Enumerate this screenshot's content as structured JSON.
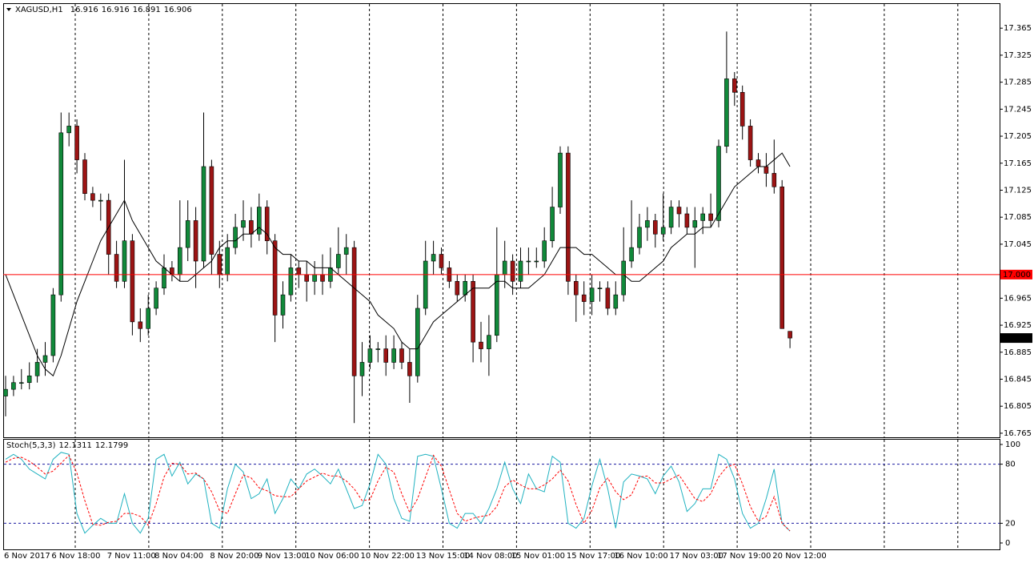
{
  "chart_data": [
    {
      "type": "candlestick",
      "title": "XAGUSD,H1",
      "categories": [
        "6 Nov 2017",
        null,
        null,
        null,
        null,
        null,
        "6 Nov 18:00",
        null,
        null,
        null,
        null,
        null,
        null,
        "7 Nov 11:00",
        null,
        null,
        null,
        null,
        null,
        "8 Nov 04:00",
        null,
        null,
        null,
        null,
        null,
        null,
        "8 Nov 20:00",
        null,
        null,
        null,
        null,
        null,
        "9 Nov 13:00",
        null,
        null,
        null,
        null,
        null,
        "10 Nov 06:00",
        null,
        null,
        null,
        null,
        null,
        null,
        "10 Nov 22:00",
        null,
        null,
        null,
        null,
        null,
        null,
        "13 Nov 15:00",
        null,
        null,
        null,
        null,
        null,
        "14 Nov 08:00",
        null,
        null,
        null,
        null,
        null,
        "15 Nov 01:00",
        null,
        null,
        null,
        null,
        null,
        null,
        "15 Nov 17:00",
        null,
        null,
        null,
        null,
        null,
        "16 Nov 10:00",
        null,
        null,
        null,
        null,
        null,
        null,
        "17 Nov 03:00",
        null,
        null,
        null,
        null,
        null,
        "17 Nov 19:00",
        null,
        null,
        null,
        null,
        null,
        null,
        "20 Nov 12:00",
        null,
        null
      ],
      "candles": [
        [
          16.82,
          16.85,
          16.79,
          16.83
        ],
        [
          16.83,
          16.85,
          16.82,
          16.84
        ],
        [
          16.84,
          16.86,
          16.83,
          16.84
        ],
        [
          16.84,
          16.87,
          16.83,
          16.85
        ],
        [
          16.85,
          16.89,
          16.84,
          16.87
        ],
        [
          16.87,
          16.9,
          16.85,
          16.88
        ],
        [
          16.88,
          16.98,
          16.87,
          16.97
        ],
        [
          16.97,
          17.24,
          16.96,
          17.21
        ],
        [
          17.21,
          17.24,
          17.19,
          17.22
        ],
        [
          17.22,
          17.23,
          17.15,
          17.17
        ],
        [
          17.17,
          17.18,
          17.11,
          17.12
        ],
        [
          17.12,
          17.13,
          17.1,
          17.11
        ],
        [
          17.11,
          17.12,
          17.08,
          17.11
        ],
        [
          17.11,
          17.12,
          17.0,
          17.03
        ],
        [
          17.03,
          17.05,
          16.98,
          16.99
        ],
        [
          16.99,
          17.17,
          16.98,
          17.05
        ],
        [
          17.05,
          17.06,
          16.91,
          16.93
        ],
        [
          16.93,
          16.95,
          16.9,
          16.92
        ],
        [
          16.92,
          16.97,
          16.91,
          16.95
        ],
        [
          16.95,
          16.99,
          16.94,
          16.98
        ],
        [
          16.98,
          17.03,
          16.97,
          17.01
        ],
        [
          17.01,
          17.02,
          16.99,
          17.0
        ],
        [
          17.0,
          17.11,
          16.99,
          17.04
        ],
        [
          17.04,
          17.11,
          17.02,
          17.08
        ],
        [
          17.08,
          17.1,
          16.98,
          17.02
        ],
        [
          17.02,
          17.24,
          17.01,
          17.16
        ],
        [
          17.16,
          17.17,
          17.0,
          17.03
        ],
        [
          17.03,
          17.05,
          16.98,
          17.0
        ],
        [
          17.0,
          17.06,
          16.99,
          17.04
        ],
        [
          17.04,
          17.09,
          17.03,
          17.07
        ],
        [
          17.07,
          17.11,
          17.05,
          17.08
        ],
        [
          17.08,
          17.1,
          17.04,
          17.06
        ],
        [
          17.06,
          17.12,
          17.05,
          17.1
        ],
        [
          17.1,
          17.11,
          17.03,
          17.05
        ],
        [
          17.05,
          17.06,
          16.9,
          16.94
        ],
        [
          16.94,
          16.99,
          16.92,
          16.97
        ],
        [
          16.97,
          17.03,
          16.96,
          17.01
        ],
        [
          17.01,
          17.02,
          16.98,
          17.0
        ],
        [
          17.0,
          17.02,
          16.96,
          16.99
        ],
        [
          16.99,
          17.02,
          16.97,
          17.0
        ],
        [
          17.0,
          17.03,
          16.97,
          16.99
        ],
        [
          16.99,
          17.04,
          16.98,
          17.01
        ],
        [
          17.01,
          17.07,
          17.0,
          17.03
        ],
        [
          17.03,
          17.06,
          17.0,
          17.04
        ],
        [
          17.04,
          17.05,
          16.78,
          16.85
        ],
        [
          16.85,
          16.9,
          16.82,
          16.87
        ],
        [
          16.87,
          16.91,
          16.86,
          16.89
        ],
        [
          16.89,
          16.9,
          16.87,
          16.89
        ],
        [
          16.89,
          16.91,
          16.85,
          16.87
        ],
        [
          16.87,
          16.91,
          16.86,
          16.89
        ],
        [
          16.89,
          16.9,
          16.86,
          16.87
        ],
        [
          16.87,
          16.89,
          16.81,
          16.85
        ],
        [
          16.85,
          16.97,
          16.84,
          16.95
        ],
        [
          16.95,
          17.05,
          16.94,
          17.02
        ],
        [
          17.02,
          17.05,
          17.0,
          17.03
        ],
        [
          17.03,
          17.04,
          17.0,
          17.01
        ],
        [
          17.01,
          17.02,
          16.98,
          16.99
        ],
        [
          16.99,
          17.0,
          16.96,
          16.97
        ],
        [
          16.97,
          17.0,
          16.96,
          16.99
        ],
        [
          16.99,
          17.0,
          16.87,
          16.9
        ],
        [
          16.9,
          16.93,
          16.87,
          16.89
        ],
        [
          16.89,
          16.94,
          16.85,
          16.91
        ],
        [
          16.91,
          17.07,
          16.9,
          17.0
        ],
        [
          17.0,
          17.05,
          16.98,
          17.02
        ],
        [
          17.02,
          17.03,
          16.97,
          16.99
        ],
        [
          16.99,
          17.04,
          16.98,
          17.02
        ],
        [
          17.02,
          17.04,
          17.0,
          17.02
        ],
        [
          17.02,
          17.04,
          17.01,
          17.02
        ],
        [
          17.02,
          17.07,
          17.01,
          17.05
        ],
        [
          17.05,
          17.13,
          17.04,
          17.1
        ],
        [
          17.1,
          17.19,
          17.09,
          17.18
        ],
        [
          17.18,
          17.19,
          16.97,
          16.99
        ],
        [
          16.99,
          17.0,
          16.93,
          16.97
        ],
        [
          16.97,
          16.99,
          16.94,
          16.96
        ],
        [
          16.96,
          17.0,
          16.94,
          16.98
        ],
        [
          16.98,
          16.99,
          16.96,
          16.98
        ],
        [
          16.98,
          16.99,
          16.94,
          16.95
        ],
        [
          16.95,
          16.99,
          16.94,
          16.97
        ],
        [
          16.97,
          17.07,
          16.96,
          17.02
        ],
        [
          17.02,
          17.11,
          17.01,
          17.04
        ],
        [
          17.04,
          17.09,
          17.03,
          17.07
        ],
        [
          17.07,
          17.1,
          17.05,
          17.08
        ],
        [
          17.08,
          17.09,
          17.04,
          17.06
        ],
        [
          17.06,
          17.12,
          17.05,
          17.07
        ],
        [
          17.07,
          17.11,
          17.06,
          17.1
        ],
        [
          17.1,
          17.11,
          17.07,
          17.09
        ],
        [
          17.09,
          17.1,
          17.06,
          17.07
        ],
        [
          17.07,
          17.1,
          17.01,
          17.08
        ],
        [
          17.08,
          17.1,
          17.06,
          17.09
        ],
        [
          17.09,
          17.12,
          17.07,
          17.08
        ],
        [
          17.08,
          17.2,
          17.07,
          17.19
        ],
        [
          17.19,
          17.36,
          17.18,
          17.29
        ],
        [
          17.29,
          17.3,
          17.25,
          17.27
        ],
        [
          17.27,
          17.28,
          17.2,
          17.22
        ],
        [
          17.22,
          17.23,
          17.16,
          17.17
        ],
        [
          17.17,
          17.18,
          17.15,
          17.16
        ],
        [
          17.16,
          17.18,
          17.13,
          17.15
        ],
        [
          17.15,
          17.2,
          17.12,
          17.13
        ],
        [
          17.13,
          17.14,
          16.92,
          16.92
        ],
        [
          16.916,
          16.916,
          16.891,
          16.906
        ]
      ],
      "up_color": "#11893a",
      "down_color": "#9c1414",
      "ma": {
        "color": "#000000",
        "values": [
          17.0,
          16.97,
          16.94,
          16.91,
          16.88,
          16.86,
          16.85,
          16.88,
          16.92,
          16.96,
          16.99,
          17.02,
          17.05,
          17.07,
          17.09,
          17.11,
          17.08,
          17.06,
          17.04,
          17.02,
          17.01,
          17.0,
          16.99,
          16.99,
          17.0,
          17.01,
          17.02,
          17.04,
          17.05,
          17.05,
          17.06,
          17.06,
          17.07,
          17.06,
          17.04,
          17.03,
          17.03,
          17.02,
          17.02,
          17.01,
          17.01,
          17.01,
          17.0,
          16.99,
          16.98,
          16.97,
          16.96,
          16.94,
          16.93,
          16.92,
          16.9,
          16.89,
          16.89,
          16.91,
          16.93,
          16.94,
          16.95,
          16.96,
          16.97,
          16.98,
          16.98,
          16.98,
          16.99,
          16.99,
          16.98,
          16.98,
          16.98,
          16.99,
          17.0,
          17.02,
          17.04,
          17.04,
          17.04,
          17.03,
          17.03,
          17.02,
          17.01,
          17.0,
          17.0,
          16.99,
          16.99,
          17.0,
          17.01,
          17.02,
          17.04,
          17.05,
          17.06,
          17.06,
          17.07,
          17.07,
          17.09,
          17.11,
          17.13,
          17.14,
          17.15,
          17.16,
          17.16,
          17.17,
          17.18,
          17.16
        ]
      },
      "hline": {
        "value": 17,
        "label": "17.000",
        "color": "#ff0000"
      },
      "last_price_color": "#000000",
      "ylim": [
        16.759,
        17.402
      ],
      "yticks": [
        17.365,
        17.325,
        17.285,
        17.245,
        17.205,
        17.165,
        17.125,
        17.085,
        17.045,
        16.965,
        16.925,
        16.885,
        16.845,
        16.805,
        16.765
      ],
      "grid": true
    },
    {
      "type": "line",
      "title": "Stoch(5,3,3)",
      "ylim": [
        -6.5,
        105.7
      ],
      "yticks": [
        100,
        80,
        20,
        0
      ],
      "levels": [
        80,
        20
      ],
      "series": [
        {
          "color": "#20b2c0",
          "values": [
            85,
            90,
            85,
            75,
            70,
            65,
            85,
            92,
            90,
            30,
            10,
            18,
            25,
            20,
            20,
            50,
            20,
            10,
            25,
            85,
            90,
            68,
            82,
            60,
            70,
            65,
            20,
            15,
            55,
            80,
            72,
            45,
            50,
            65,
            30,
            45,
            65,
            55,
            70,
            75,
            68,
            60,
            75,
            55,
            35,
            38,
            60,
            90,
            80,
            45,
            25,
            22,
            88,
            90,
            88,
            55,
            20,
            15,
            30,
            30,
            20,
            35,
            55,
            82,
            55,
            40,
            70,
            55,
            52,
            88,
            82,
            20,
            15,
            25,
            58,
            85,
            55,
            15,
            62,
            70,
            68,
            65,
            50,
            68,
            78,
            62,
            32,
            40,
            55,
            55,
            90,
            85,
            65,
            30,
            15,
            20,
            45,
            75,
            20,
            12.1311
          ]
        },
        {
          "color": "#ff0000",
          "dash": true,
          "values": [
            82,
            86,
            87,
            83,
            77,
            70,
            73,
            81,
            89,
            71,
            43,
            19,
            18,
            21,
            22,
            30,
            30,
            27,
            18,
            40,
            67,
            81,
            80,
            70,
            71,
            65,
            52,
            33,
            30,
            50,
            69,
            66,
            56,
            53,
            48,
            47,
            47,
            55,
            63,
            67,
            71,
            68,
            68,
            63,
            55,
            43,
            44,
            63,
            77,
            72,
            50,
            31,
            45,
            67,
            89,
            78,
            54,
            30,
            22,
            25,
            27,
            28,
            37,
            57,
            64,
            59,
            55,
            55,
            59,
            65,
            74,
            63,
            39,
            20,
            33,
            56,
            66,
            52,
            44,
            49,
            67,
            68,
            61,
            61,
            65,
            69,
            57,
            45,
            42,
            50,
            67,
            77,
            80,
            60,
            37,
            22,
            27,
            47,
            20,
            12.1799
          ]
        }
      ]
    }
  ]
}
